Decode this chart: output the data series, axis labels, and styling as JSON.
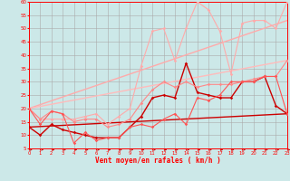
{
  "xlabel": "Vent moyen/en rafales ( km/h )",
  "bg_color": "#cce8e8",
  "grid_color": "#aaaaaa",
  "xlim": [
    0,
    23
  ],
  "ylim": [
    5,
    60
  ],
  "yticks": [
    5,
    10,
    15,
    20,
    25,
    30,
    35,
    40,
    45,
    50,
    55,
    60
  ],
  "xticks": [
    0,
    1,
    2,
    3,
    4,
    5,
    6,
    7,
    8,
    9,
    10,
    11,
    12,
    13,
    14,
    15,
    16,
    17,
    18,
    19,
    20,
    21,
    22,
    23
  ],
  "series": [
    {
      "x": [
        0,
        23
      ],
      "y": [
        13,
        18
      ],
      "color": "#cc0000",
      "lw": 1.0,
      "marker": null,
      "ms": 0
    },
    {
      "x": [
        0,
        1,
        2,
        3,
        4,
        5,
        6,
        7,
        8,
        9,
        10,
        11,
        12,
        13,
        14,
        15,
        16,
        17,
        18,
        19,
        20,
        21,
        22,
        23
      ],
      "y": [
        13,
        10,
        14,
        12,
        11,
        10,
        9,
        9,
        9,
        13,
        17,
        24,
        25,
        24,
        37,
        26,
        25,
        24,
        24,
        30,
        30,
        32,
        21,
        18
      ],
      "color": "#cc0000",
      "lw": 1.0,
      "marker": "D",
      "ms": 1.8
    },
    {
      "x": [
        0,
        23
      ],
      "y": [
        20,
        53
      ],
      "color": "#ffaaaa",
      "lw": 1.0,
      "marker": null,
      "ms": 0
    },
    {
      "x": [
        0,
        23
      ],
      "y": [
        20,
        38
      ],
      "color": "#ffbbbb",
      "lw": 1.0,
      "marker": null,
      "ms": 0
    },
    {
      "x": [
        0,
        1,
        2,
        3,
        4,
        5,
        6,
        7,
        8,
        9,
        10,
        11,
        12,
        13,
        14,
        15,
        16,
        17,
        18,
        19,
        20,
        21,
        22,
        23
      ],
      "y": [
        20,
        16,
        16,
        16,
        16,
        17,
        18,
        14,
        17,
        20,
        36,
        49,
        50,
        38,
        50,
        60,
        57,
        49,
        33,
        52,
        53,
        53,
        50,
        60
      ],
      "color": "#ffaaaa",
      "lw": 0.8,
      "marker": "D",
      "ms": 1.8
    },
    {
      "x": [
        0,
        1,
        2,
        3,
        4,
        5,
        6,
        7,
        8,
        9,
        10,
        11,
        12,
        13,
        14,
        15,
        16,
        17,
        18,
        19,
        20,
        21,
        22,
        23
      ],
      "y": [
        20,
        16,
        19,
        18,
        15,
        16,
        16,
        13,
        14,
        16,
        22,
        27,
        30,
        28,
        30,
        28,
        29,
        29,
        29,
        30,
        31,
        32,
        32,
        38
      ],
      "color": "#ff8888",
      "lw": 0.8,
      "marker": "D",
      "ms": 1.8
    },
    {
      "x": [
        0,
        1,
        2,
        3,
        4,
        5,
        6,
        7,
        8,
        9,
        10,
        11,
        12,
        13,
        14,
        15,
        16,
        17,
        18,
        19,
        20,
        21,
        22,
        23
      ],
      "y": [
        20,
        14,
        19,
        18,
        7,
        11,
        8,
        9,
        9,
        13,
        14,
        13,
        16,
        18,
        14,
        24,
        23,
        25,
        30,
        30,
        30,
        32,
        32,
        18
      ],
      "color": "#ff5555",
      "lw": 0.8,
      "marker": "D",
      "ms": 1.8
    }
  ]
}
